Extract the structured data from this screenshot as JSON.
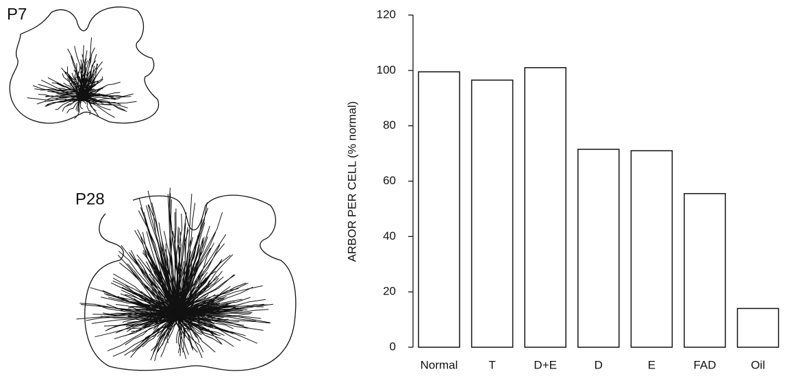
{
  "panels": [
    {
      "label": "P7"
    },
    {
      "label": "P28"
    }
  ],
  "chart_data": {
    "type": "bar",
    "y_label": "ARBOR PER CELL (% normal)",
    "categories": [
      "Normal",
      "T",
      "D+E",
      "D",
      "E",
      "FAD",
      "Oil"
    ],
    "values": [
      99.5,
      96.5,
      101,
      71.5,
      71,
      55.5,
      14
    ],
    "color": "#ffffff",
    "edgecolor": "#111111",
    "ylim": [
      0,
      120
    ],
    "yticks": [
      0,
      20,
      40,
      60,
      80,
      100,
      120
    ],
    "grid": false
  }
}
